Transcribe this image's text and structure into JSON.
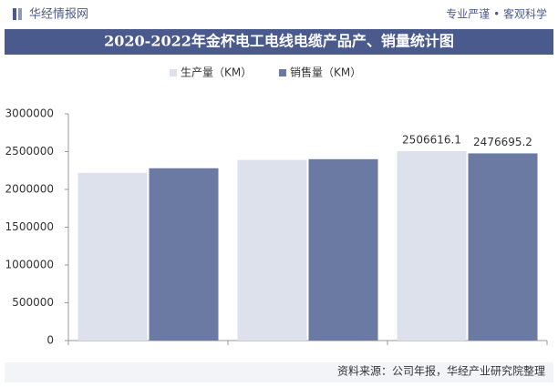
{
  "header": {
    "logo": "华经情报网",
    "motto": "专业严谨 • 客观科学"
  },
  "chart_data": {
    "type": "bar",
    "title": "2020-2022年金杯电工电线电缆产品产、销量统计图",
    "categories": [
      null,
      null,
      null
    ],
    "series": [
      {
        "name": "生产量（KM）",
        "color": "#dde1eb",
        "values": [
          2220000,
          2390000,
          2506616.1
        ],
        "value_labels": [
          null,
          null,
          "2506616.1"
        ]
      },
      {
        "name": "销售量（KM）",
        "color": "#6a7aa3",
        "values": [
          2280000,
          2400000,
          2476695.2
        ],
        "value_labels": [
          null,
          null,
          "2476695.2"
        ]
      }
    ],
    "ylim": [
      0,
      3000000
    ],
    "yticks": [
      0,
      500000,
      1000000,
      1500000,
      2000000,
      2500000,
      3000000
    ],
    "grid": false,
    "legend": "top"
  },
  "footer": {
    "source": "资料来源：公司年报，华经产业研究院整理"
  }
}
